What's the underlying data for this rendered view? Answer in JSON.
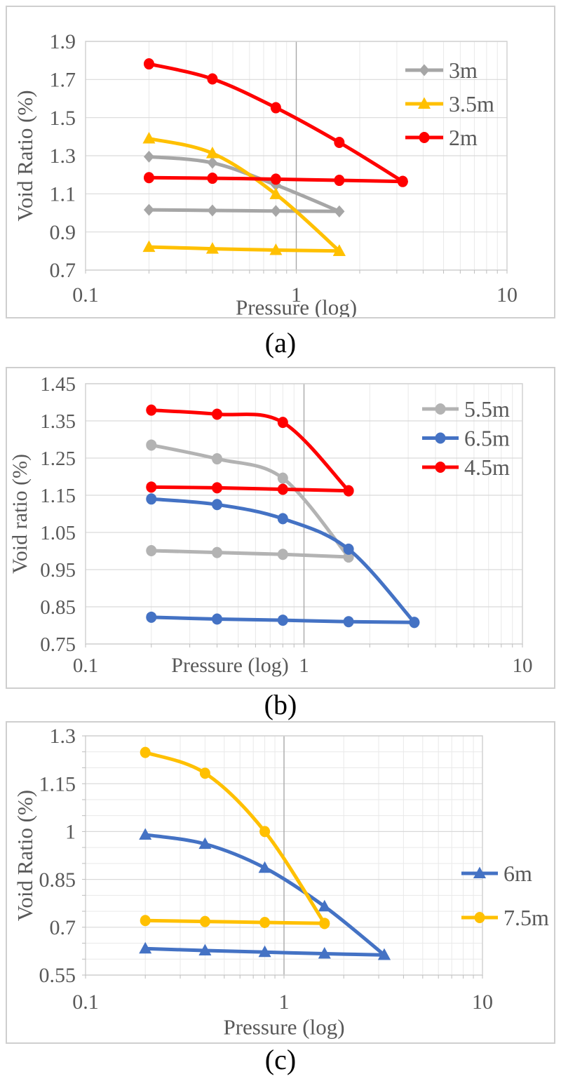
{
  "page": {
    "background": "#ffffff"
  },
  "styles": {
    "text_color": "#595959",
    "caption_color": "#000000",
    "grid_minor": "#e9e9e9",
    "grid_major": "#d9d9d9",
    "grid_x1_line": "#a9a9a9",
    "plot_border": "#d2d2d2",
    "panel_border": "#cfcfcf",
    "axis_tick_mark": "#bdbdbd"
  },
  "captions": {
    "a": "(a)",
    "b": "(b)",
    "c": "(c)"
  },
  "chart_data": [
    {
      "id": "a",
      "type": "line",
      "caption": "(a)",
      "xlabel": "Pressure (log)",
      "ylabel": "Void Ratio (%)",
      "x_scale": "log",
      "xlim": [
        0.1,
        10
      ],
      "x_tick_labels": [
        "0.1",
        "1",
        "10"
      ],
      "x_ticks": [
        0.1,
        1,
        10
      ],
      "ylim": [
        0.7,
        1.9
      ],
      "y_ticks": [
        0.7,
        0.9,
        1.1,
        1.3,
        1.5,
        1.7,
        1.9
      ],
      "y_tick_labels": [
        "0.7",
        "0.9",
        "1.1",
        "1.3",
        "1.5",
        "1.7",
        "1.9"
      ],
      "y_minor_step": null,
      "grid": true,
      "legend_position": "inside-top-right",
      "series": [
        {
          "name": "3m",
          "color": "#a6a6a6",
          "marker": "diamond",
          "compression": [
            [
              0.2,
              1.295
            ],
            [
              0.4,
              1.263
            ],
            [
              0.8,
              1.147
            ],
            [
              1.6,
              1.008
            ]
          ],
          "rebound": [
            [
              0.2,
              1.016
            ],
            [
              0.4,
              1.013
            ],
            [
              0.8,
              1.01
            ],
            [
              1.6,
              1.008
            ]
          ]
        },
        {
          "name": "3.5m",
          "color": "#ffc000",
          "marker": "triangle",
          "compression": [
            [
              0.2,
              1.39
            ],
            [
              0.4,
              1.313
            ],
            [
              0.8,
              1.098
            ],
            [
              1.6,
              0.8
            ]
          ],
          "rebound": [
            [
              0.2,
              0.821
            ],
            [
              0.4,
              0.812
            ],
            [
              0.8,
              0.805
            ],
            [
              1.6,
              0.8
            ]
          ]
        },
        {
          "name": "2m",
          "color": "#ff0000",
          "marker": "circle",
          "compression": [
            [
              0.2,
              1.782
            ],
            [
              0.4,
              1.703
            ],
            [
              0.8,
              1.552
            ],
            [
              1.6,
              1.37
            ],
            [
              3.2,
              1.165
            ]
          ],
          "rebound": [
            [
              0.2,
              1.185
            ],
            [
              0.4,
              1.182
            ],
            [
              0.8,
              1.177
            ],
            [
              1.6,
              1.171
            ],
            [
              3.2,
              1.165
            ]
          ]
        }
      ]
    },
    {
      "id": "b",
      "type": "line",
      "caption": "(b)",
      "xlabel": "Pressure (log)",
      "ylabel": "Void ratio (%)",
      "x_scale": "log",
      "xlim": [
        0.1,
        10
      ],
      "x_tick_labels": [
        "0.1",
        "1",
        "10"
      ],
      "x_ticks": [
        0.1,
        1,
        10
      ],
      "ylim": [
        0.75,
        1.45
      ],
      "y_ticks": [
        0.75,
        0.85,
        0.95,
        1.05,
        1.15,
        1.25,
        1.35,
        1.45
      ],
      "y_tick_labels": [
        "0.75",
        "0.85",
        "0.95",
        "1.05",
        "1.15",
        "1.25",
        "1.35",
        "1.45"
      ],
      "y_minor_step": null,
      "grid": true,
      "legend_position": "inside-top-right",
      "series": [
        {
          "name": "5.5m",
          "color": "#b3b3b3",
          "marker": "circle",
          "compression": [
            [
              0.2,
              1.285
            ],
            [
              0.4,
              1.248
            ],
            [
              0.8,
              1.196
            ],
            [
              1.6,
              0.984
            ]
          ],
          "rebound": [
            [
              0.2,
              1.001
            ],
            [
              0.4,
              0.996
            ],
            [
              0.8,
              0.991
            ],
            [
              1.6,
              0.984
            ]
          ]
        },
        {
          "name": "6.5m",
          "color": "#4472c4",
          "marker": "circle",
          "compression": [
            [
              0.2,
              1.14
            ],
            [
              0.4,
              1.125
            ],
            [
              0.8,
              1.087
            ],
            [
              1.6,
              1.005
            ],
            [
              3.2,
              0.808
            ]
          ],
          "rebound": [
            [
              0.2,
              0.822
            ],
            [
              0.4,
              0.817
            ],
            [
              0.8,
              0.814
            ],
            [
              1.6,
              0.81
            ],
            [
              3.2,
              0.808
            ]
          ]
        },
        {
          "name": "4.5m",
          "color": "#ff0000",
          "marker": "circle",
          "compression": [
            [
              0.2,
              1.379
            ],
            [
              0.4,
              1.368
            ],
            [
              0.8,
              1.346
            ],
            [
              1.6,
              1.162
            ]
          ],
          "rebound": [
            [
              0.2,
              1.172
            ],
            [
              0.4,
              1.17
            ],
            [
              0.8,
              1.166
            ],
            [
              1.6,
              1.162
            ]
          ]
        }
      ]
    },
    {
      "id": "c",
      "type": "line",
      "caption": "(c)",
      "xlabel": "Pressure (log)",
      "ylabel": "Void Ratio (%)",
      "x_scale": "log",
      "xlim": [
        0.1,
        10
      ],
      "x_tick_labels": [
        "0.1",
        "1",
        "10"
      ],
      "x_ticks": [
        0.1,
        1,
        10
      ],
      "ylim": [
        0.55,
        1.3
      ],
      "y_ticks": [
        0.55,
        0.7,
        0.85,
        1.0,
        1.15,
        1.3
      ],
      "y_tick_labels": [
        "0.55",
        "0.7",
        "0.85",
        "1",
        "1.15",
        "1.3"
      ],
      "y_minor_step": 0.05,
      "grid": true,
      "legend_position": "inside-middle-right",
      "series": [
        {
          "name": "6m",
          "color": "#4472c4",
          "marker": "triangle",
          "compression": [
            [
              0.2,
              0.99
            ],
            [
              0.4,
              0.961
            ],
            [
              0.8,
              0.886
            ],
            [
              1.6,
              0.765
            ],
            [
              3.2,
              0.613
            ]
          ],
          "rebound": [
            [
              0.2,
              0.633
            ],
            [
              0.4,
              0.627
            ],
            [
              0.8,
              0.622
            ],
            [
              1.6,
              0.617
            ],
            [
              3.2,
              0.613
            ]
          ]
        },
        {
          "name": "7.5m",
          "color": "#ffc000",
          "marker": "circle",
          "compression": [
            [
              0.2,
              1.248
            ],
            [
              0.4,
              1.183
            ],
            [
              0.8,
              1.0
            ],
            [
              1.6,
              0.712
            ]
          ],
          "rebound": [
            [
              0.2,
              0.721
            ],
            [
              0.4,
              0.718
            ],
            [
              0.8,
              0.715
            ],
            [
              1.6,
              0.712
            ]
          ]
        }
      ]
    }
  ]
}
